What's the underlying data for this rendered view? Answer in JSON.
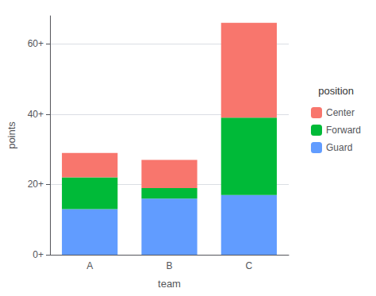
{
  "chart_data": {
    "type": "bar",
    "stacked": true,
    "categories": [
      "A",
      "B",
      "C"
    ],
    "series": [
      {
        "name": "Guard",
        "color": "#619CFF",
        "values": [
          13,
          16,
          17
        ]
      },
      {
        "name": "Forward",
        "color": "#00BA38",
        "values": [
          9,
          3,
          22
        ]
      },
      {
        "name": "Center",
        "color": "#F8766D",
        "values": [
          7,
          8,
          27
        ]
      }
    ],
    "xlabel": "team",
    "ylabel": "points",
    "legend_title": "position",
    "ylim": [
      0,
      68
    ],
    "yticks": [
      {
        "value": 0,
        "label": "0+"
      },
      {
        "value": 20,
        "label": "20+"
      },
      {
        "value": 40,
        "label": "40+"
      },
      {
        "value": 60,
        "label": "60+"
      }
    ],
    "grid": true,
    "legend": "right"
  }
}
